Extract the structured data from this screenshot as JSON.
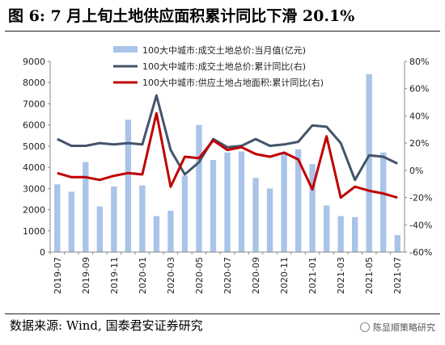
{
  "title": "图 6:  7 月上旬土地供应面积累计同比下滑 20.1%",
  "source": "数据来源: Wind, 国泰君安证券研究",
  "watermark": "陈显顺策略研究",
  "chart_data": {
    "type": "bar+line",
    "categories": [
      "2019-07",
      "2019-08",
      "2019-09",
      "2019-10",
      "2019-11",
      "2019-12",
      "2020-01",
      "2020-02",
      "2020-03",
      "2020-04",
      "2020-05",
      "2020-06",
      "2020-07",
      "2020-08",
      "2020-09",
      "2020-10",
      "2020-11",
      "2020-12",
      "2021-01",
      "2021-02",
      "2021-03",
      "2021-04",
      "2021-05",
      "2021-06",
      "2021-07"
    ],
    "x_tick_labels": [
      "2019-07",
      "2019-09",
      "2019-11",
      "2020-01",
      "2020-03",
      "2020-05",
      "2020-07",
      "2020-09",
      "2020-11",
      "2021-01",
      "2021-03",
      "2021-05",
      "2021-07"
    ],
    "y_left": {
      "min": 0,
      "max": 9000,
      "step": 1000,
      "ticks": [
        "0",
        "1000",
        "2000",
        "3000",
        "4000",
        "5000",
        "6000",
        "7000",
        "8000",
        "9000"
      ]
    },
    "y_right": {
      "min": -60,
      "max": 80,
      "step": 20,
      "ticks": [
        "-60%",
        "-40%",
        "-20%",
        "0%",
        "20%",
        "40%",
        "60%",
        "80%"
      ]
    },
    "series": [
      {
        "name": "100大中城市:成交土地总价:当月值(亿元)",
        "kind": "bar",
        "axis": "left",
        "color": "#a9c4e8",
        "values": [
          3200,
          2850,
          4250,
          2150,
          3100,
          6250,
          3150,
          1700,
          1950,
          3600,
          6000,
          4350,
          4700,
          4750,
          3500,
          3000,
          4700,
          4850,
          4150,
          2200,
          1700,
          1650,
          8400,
          4700,
          800
        ]
      },
      {
        "name": "100大中城市:成交土地总价:累计同比(右)",
        "kind": "line",
        "axis": "right",
        "color": "#44546a",
        "values": [
          23,
          18,
          18,
          20,
          19,
          20,
          19,
          55,
          15,
          -3,
          6,
          23,
          17,
          18,
          23,
          18,
          19,
          21,
          33,
          32,
          20,
          -7,
          11,
          10,
          5
        ]
      },
      {
        "name": "100大中城市:供应土地占地面积:累计同比(右)",
        "kind": "line",
        "axis": "right",
        "color": "#c00000",
        "values": [
          -2,
          -5,
          -5,
          -7,
          -4,
          -2,
          -3,
          42,
          -12,
          10,
          9,
          22,
          15,
          17,
          12,
          10,
          13,
          8,
          -14,
          25,
          -20,
          -12,
          -15,
          -17,
          -20
        ]
      }
    ],
    "legend_position": "top-center"
  }
}
